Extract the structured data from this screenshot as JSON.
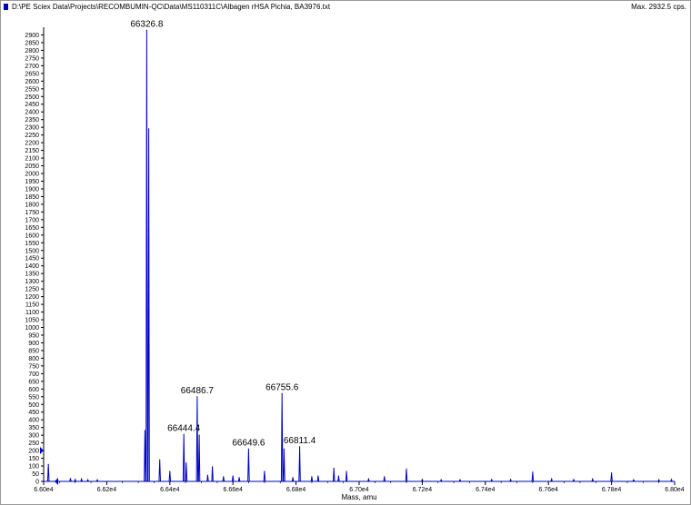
{
  "header": {
    "file_path": "D:\\PE Sciex Data\\Projects\\RECOMBUMIN-QC\\Data\\MS110311C\\Albagen rHSA Pichia, BA3976.txt",
    "max_intensity": "Max. 2932.5 cps."
  },
  "colors": {
    "series": "#0000c8",
    "axis": "#000000",
    "frame": "#9a9a9a"
  },
  "chart_data": {
    "type": "line",
    "title": "",
    "xlabel": "Mass, amu",
    "ylabel": "",
    "xlim": [
      66000,
      68000
    ],
    "ylim": [
      0,
      2950
    ],
    "x_ticks": [
      66000,
      66200,
      66400,
      66600,
      66800,
      67000,
      67200,
      67400,
      67600,
      67800,
      68000
    ],
    "x_tick_labels": [
      "6.60e4",
      "6.62e4",
      "6.64e4",
      "6.66e4",
      "6.68e4",
      "6.70e4",
      "6.72e4",
      "6.74e4",
      "6.76e4",
      "6.78e4",
      "6.80e4"
    ],
    "y_ticks": [
      0,
      50,
      100,
      150,
      200,
      250,
      300,
      350,
      400,
      450,
      500,
      550,
      600,
      650,
      700,
      750,
      800,
      850,
      900,
      950,
      1000,
      1050,
      1100,
      1150,
      1200,
      1250,
      1300,
      1350,
      1400,
      1450,
      1500,
      1550,
      1600,
      1650,
      1700,
      1750,
      1800,
      1850,
      1900,
      1950,
      2000,
      2050,
      2100,
      2150,
      2200,
      2250,
      2300,
      2350,
      2400,
      2450,
      2500,
      2550,
      2600,
      2650,
      2700,
      2750,
      2800,
      2850,
      2900
    ],
    "y_tick_labels": [
      "0",
      "50",
      "100",
      "150",
      "200",
      "250",
      "300",
      "350",
      "400",
      "450",
      "500",
      "550",
      "600",
      "650",
      "700",
      "750",
      "800",
      "850",
      "900",
      "950",
      "1000",
      "1050",
      "1100",
      "1150",
      "1200",
      "1250",
      "1300",
      "1350",
      "1400",
      "1450",
      "1500",
      "1550",
      "1600",
      "1650",
      "1700",
      "1750",
      "1800",
      "1850",
      "1900",
      "1950",
      "2000",
      "2050",
      "2100",
      "2150",
      "2200",
      "2250",
      "2300",
      "2350",
      "2400",
      "2450",
      "2500",
      "2550",
      "2600",
      "2650",
      "2700",
      "2750",
      "2800",
      "2850",
      "2900"
    ],
    "peaks": [
      {
        "x": 66015,
        "y": 110
      },
      {
        "x": 66085,
        "y": 18
      },
      {
        "x": 66100,
        "y": 12
      },
      {
        "x": 66120,
        "y": 15
      },
      {
        "x": 66140,
        "y": 10
      },
      {
        "x": 66170,
        "y": 10
      },
      {
        "x": 66326.8,
        "y": 2930
      },
      {
        "x": 66333,
        "y": 2290
      },
      {
        "x": 66321,
        "y": 330
      },
      {
        "x": 66368,
        "y": 140
      },
      {
        "x": 66400,
        "y": 65
      },
      {
        "x": 66444.4,
        "y": 305
      },
      {
        "x": 66452,
        "y": 120
      },
      {
        "x": 66486.7,
        "y": 550
      },
      {
        "x": 66493,
        "y": 300
      },
      {
        "x": 66520,
        "y": 40
      },
      {
        "x": 66535,
        "y": 95
      },
      {
        "x": 66570,
        "y": 30
      },
      {
        "x": 66600,
        "y": 35
      },
      {
        "x": 66620,
        "y": 25
      },
      {
        "x": 66649.6,
        "y": 210
      },
      {
        "x": 66700,
        "y": 65
      },
      {
        "x": 66755.6,
        "y": 570
      },
      {
        "x": 66762,
        "y": 210
      },
      {
        "x": 66790,
        "y": 25
      },
      {
        "x": 66811.4,
        "y": 225
      },
      {
        "x": 66850,
        "y": 30
      },
      {
        "x": 66870,
        "y": 35
      },
      {
        "x": 66920,
        "y": 85
      },
      {
        "x": 66935,
        "y": 35
      },
      {
        "x": 66960,
        "y": 65
      },
      {
        "x": 67030,
        "y": 15
      },
      {
        "x": 67080,
        "y": 30
      },
      {
        "x": 67150,
        "y": 80
      },
      {
        "x": 67200,
        "y": 12
      },
      {
        "x": 67260,
        "y": 10
      },
      {
        "x": 67320,
        "y": 10
      },
      {
        "x": 67420,
        "y": 12
      },
      {
        "x": 67480,
        "y": 12
      },
      {
        "x": 67550,
        "y": 60
      },
      {
        "x": 67610,
        "y": 15
      },
      {
        "x": 67680,
        "y": 12
      },
      {
        "x": 67740,
        "y": 15
      },
      {
        "x": 67800,
        "y": 55
      },
      {
        "x": 67870,
        "y": 10
      },
      {
        "x": 67950,
        "y": 10
      },
      {
        "x": 67990,
        "y": 12
      }
    ],
    "annotations": [
      {
        "x": 66326.8,
        "y": 2930,
        "text": "66326.8"
      },
      {
        "x": 66486.7,
        "y": 550,
        "text": "66486.7"
      },
      {
        "x": 66444.4,
        "y": 305,
        "text": "66444.4"
      },
      {
        "x": 66649.6,
        "y": 210,
        "text": "66649.6"
      },
      {
        "x": 66755.6,
        "y": 570,
        "text": "66755.6"
      },
      {
        "x": 66811.4,
        "y": 225,
        "text": "66811.4"
      }
    ]
  }
}
